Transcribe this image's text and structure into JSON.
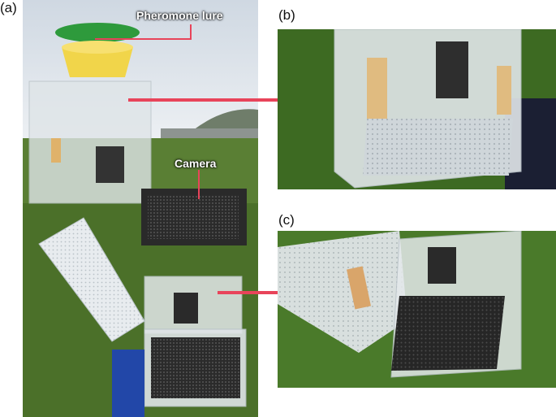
{
  "figure": {
    "panel_labels": {
      "a": "(a)",
      "b": "(b)",
      "c": "(c)"
    },
    "callouts": {
      "lure": "Pheromone lure",
      "camera": "Camera"
    },
    "colors": {
      "arrow": "#e8445a",
      "lure_label_line": "#e8445a",
      "grass": "#4f7a2e",
      "sky": "#e6ecf2"
    }
  }
}
